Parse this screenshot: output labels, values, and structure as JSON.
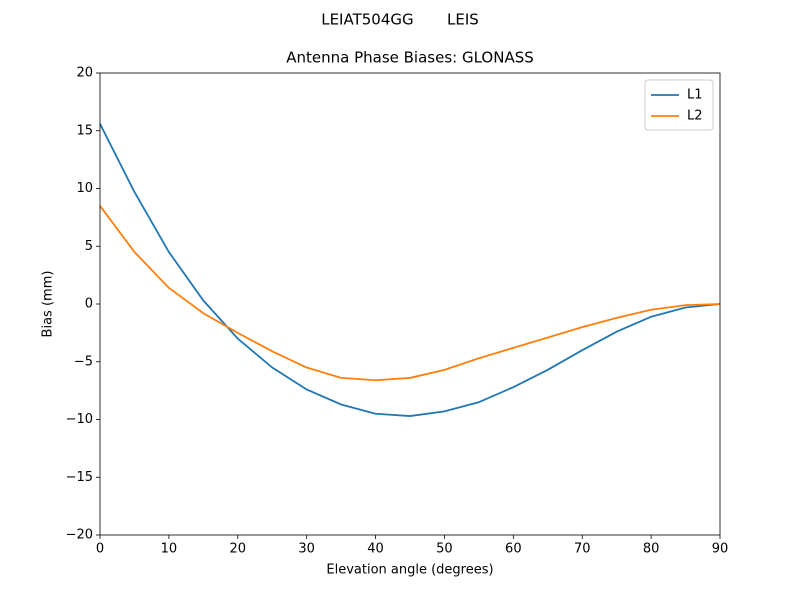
{
  "chart_data": {
    "type": "line",
    "suptitle": "LEIAT504GG       LEIS",
    "title": "Antenna Phase Biases: GLONASS",
    "x_label": "Elevation angle (degrees)",
    "y_label": "Bias (mm)",
    "x": [
      0,
      5,
      10,
      15,
      20,
      25,
      30,
      35,
      40,
      45,
      50,
      55,
      60,
      65,
      70,
      75,
      80,
      85,
      90
    ],
    "series": [
      {
        "name": "L1",
        "color": "#1f77b4",
        "values": [
          15.6,
          9.7,
          4.5,
          0.3,
          -3.0,
          -5.5,
          -7.4,
          -8.7,
          -9.5,
          -9.7,
          -9.3,
          -8.5,
          -7.2,
          -5.7,
          -4.0,
          -2.4,
          -1.1,
          -0.3,
          0
        ]
      },
      {
        "name": "L2",
        "color": "#ff7f0e",
        "values": [
          8.5,
          4.5,
          1.4,
          -0.8,
          -2.5,
          -4.1,
          -5.5,
          -6.4,
          -6.6,
          -6.4,
          -5.7,
          -4.7,
          -3.8,
          -2.9,
          -2.0,
          -1.2,
          -0.5,
          -0.1,
          0
        ]
      }
    ],
    "xlim": [
      0,
      90
    ],
    "xticks": [
      0,
      10,
      20,
      30,
      40,
      50,
      60,
      70,
      80,
      90
    ],
    "ylim": [
      -20,
      20
    ],
    "yticks": [
      {
        "value": -20,
        "label": "−20"
      },
      {
        "value": -15,
        "label": "−15"
      },
      {
        "value": -10,
        "label": "−10"
      },
      {
        "value": -5,
        "label": "−5"
      },
      0,
      5,
      10,
      15,
      20
    ],
    "legend": "upper right"
  }
}
